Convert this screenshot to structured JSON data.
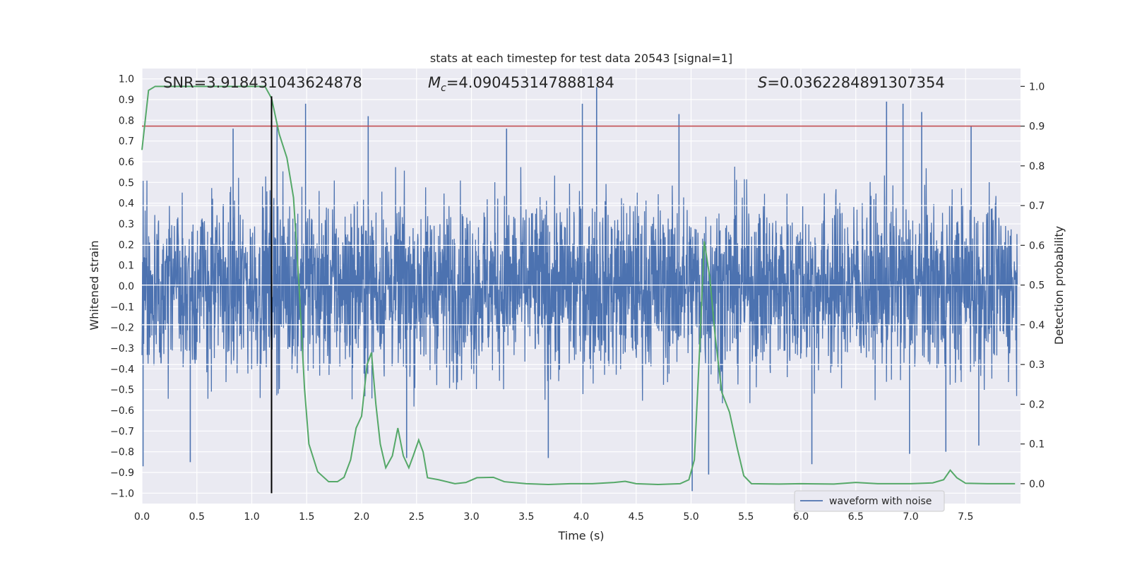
{
  "chart_data": {
    "type": "line",
    "title": "stats at each timestep for test data 20543 [signal=1]",
    "xlabel": "Time (s)",
    "ylabel_left": "Whitened strain",
    "ylabel_right": "Detection probability",
    "xlim": [
      0.0,
      8.0
    ],
    "ylim_left": [
      -1.05,
      1.05
    ],
    "ylim_right": [
      -0.05,
      1.045
    ],
    "x_ticks": [
      0.0,
      0.5,
      1.0,
      1.5,
      2.0,
      2.5,
      3.0,
      3.5,
      4.0,
      4.5,
      5.0,
      5.5,
      6.0,
      6.5,
      7.0,
      7.5
    ],
    "x_tick_labels": [
      "0.0",
      "0.5",
      "1.0",
      "1.5",
      "2.0",
      "2.5",
      "3.0",
      "3.5",
      "4.0",
      "4.5",
      "5.0",
      "5.5",
      "6.0",
      "6.5",
      "7.0",
      "7.5"
    ],
    "y_left_ticks": [
      1.0,
      0.9,
      0.8,
      0.7,
      0.6,
      0.5,
      0.4,
      0.3,
      0.2,
      0.1,
      0.0,
      -0.1,
      -0.2,
      -0.3,
      -0.4,
      -0.5,
      -0.6,
      -0.7,
      -0.8,
      -0.9,
      -1.0
    ],
    "y_left_tick_labels": [
      "1.0",
      "0.9",
      "0.8",
      "0.7",
      "0.6",
      "0.5",
      "0.4",
      "0.3",
      "0.2",
      "0.1",
      "0.0",
      "−0.1",
      "−0.2",
      "−0.3",
      "−0.4",
      "−0.5",
      "−0.6",
      "−0.7",
      "−0.8",
      "−0.9",
      "−1.0"
    ],
    "y_right_ticks": [
      1.0,
      0.9,
      0.8,
      0.7,
      0.6,
      0.5,
      0.4,
      0.3,
      0.2,
      0.1,
      0.0
    ],
    "y_right_tick_labels": [
      "1.0",
      "0.9",
      "0.8",
      "0.7",
      "0.6",
      "0.5",
      "0.4",
      "0.3",
      "0.2",
      "0.1",
      "0.0"
    ],
    "annotations": {
      "snr": "SNR=3.918431043624878",
      "mc_symbol": "M",
      "mc_sub": "c",
      "mc_value": "=4.090453147888184",
      "s_symbol": "S",
      "s_value": "=0.0362284891307354"
    },
    "threshold": {
      "axis": "right",
      "value": 0.9,
      "color": "#c44e52"
    },
    "vline": {
      "x": 1.18,
      "color": "#000000"
    },
    "waveform": {
      "name": "waveform with noise",
      "color": "#4c72b0",
      "typical_envelope": 0.42,
      "notable_peaks": [
        {
          "x": 1.49,
          "y": 0.88
        },
        {
          "x": 2.06,
          "y": 0.82
        },
        {
          "x": 4.01,
          "y": 0.88
        },
        {
          "x": 4.14,
          "y": 0.96
        },
        {
          "x": 4.89,
          "y": 0.83
        },
        {
          "x": 6.78,
          "y": 0.89
        },
        {
          "x": 6.93,
          "y": 0.88
        },
        {
          "x": 7.1,
          "y": 0.84
        },
        {
          "x": 0.83,
          "y": 0.76
        },
        {
          "x": 1.23,
          "y": 0.78
        },
        {
          "x": 3.32,
          "y": 0.76
        },
        {
          "x": 7.55,
          "y": 0.77
        }
      ],
      "notable_troughs": [
        {
          "x": 0.01,
          "y": -0.87
        },
        {
          "x": 0.44,
          "y": -0.85
        },
        {
          "x": 2.41,
          "y": -0.83
        },
        {
          "x": 3.7,
          "y": -0.83
        },
        {
          "x": 5.01,
          "y": -0.99
        },
        {
          "x": 5.16,
          "y": -0.91
        },
        {
          "x": 6.1,
          "y": -0.86
        },
        {
          "x": 6.99,
          "y": -0.81
        },
        {
          "x": 7.32,
          "y": -0.8
        },
        {
          "x": 7.62,
          "y": -0.77
        }
      ]
    },
    "detection_probability": {
      "name": "detection probability",
      "color": "#55a868",
      "points": [
        [
          0.0,
          0.84
        ],
        [
          0.06,
          0.99
        ],
        [
          0.12,
          1.0
        ],
        [
          0.5,
          1.0
        ],
        [
          1.0,
          1.0
        ],
        [
          1.12,
          1.0
        ],
        [
          1.18,
          0.97
        ],
        [
          1.25,
          0.88
        ],
        [
          1.32,
          0.82
        ],
        [
          1.38,
          0.72
        ],
        [
          1.43,
          0.5
        ],
        [
          1.48,
          0.24
        ],
        [
          1.52,
          0.1
        ],
        [
          1.6,
          0.03
        ],
        [
          1.7,
          0.005
        ],
        [
          1.78,
          0.005
        ],
        [
          1.84,
          0.016
        ],
        [
          1.9,
          0.06
        ],
        [
          1.95,
          0.14
        ],
        [
          2.0,
          0.17
        ],
        [
          2.05,
          0.3
        ],
        [
          2.09,
          0.33
        ],
        [
          2.13,
          0.2
        ],
        [
          2.17,
          0.1
        ],
        [
          2.22,
          0.04
        ],
        [
          2.28,
          0.07
        ],
        [
          2.33,
          0.14
        ],
        [
          2.38,
          0.07
        ],
        [
          2.43,
          0.04
        ],
        [
          2.47,
          0.07
        ],
        [
          2.52,
          0.11
        ],
        [
          2.56,
          0.08
        ],
        [
          2.6,
          0.015
        ],
        [
          2.7,
          0.01
        ],
        [
          2.85,
          0.0
        ],
        [
          2.95,
          0.003
        ],
        [
          3.05,
          0.015
        ],
        [
          3.2,
          0.016
        ],
        [
          3.3,
          0.005
        ],
        [
          3.5,
          0.0
        ],
        [
          3.7,
          -0.002
        ],
        [
          3.9,
          0.0
        ],
        [
          4.1,
          0.0
        ],
        [
          4.3,
          0.003
        ],
        [
          4.4,
          0.006
        ],
        [
          4.5,
          0.0
        ],
        [
          4.7,
          -0.002
        ],
        [
          4.9,
          0.0
        ],
        [
          4.98,
          0.01
        ],
        [
          5.03,
          0.06
        ],
        [
          5.08,
          0.35
        ],
        [
          5.12,
          0.61
        ],
        [
          5.17,
          0.52
        ],
        [
          5.22,
          0.37
        ],
        [
          5.28,
          0.23
        ],
        [
          5.35,
          0.18
        ],
        [
          5.42,
          0.09
        ],
        [
          5.48,
          0.02
        ],
        [
          5.55,
          0.0
        ],
        [
          5.8,
          -0.001
        ],
        [
          6.0,
          0.0
        ],
        [
          6.3,
          -0.001
        ],
        [
          6.5,
          0.003
        ],
        [
          6.7,
          0.0
        ],
        [
          7.0,
          0.0
        ],
        [
          7.2,
          0.002
        ],
        [
          7.3,
          0.01
        ],
        [
          7.36,
          0.034
        ],
        [
          7.42,
          0.015
        ],
        [
          7.5,
          0.001
        ],
        [
          7.7,
          0.0
        ],
        [
          7.95,
          0.0
        ]
      ]
    },
    "legend": {
      "label": "waveform with noise",
      "location": "lower-right"
    }
  }
}
